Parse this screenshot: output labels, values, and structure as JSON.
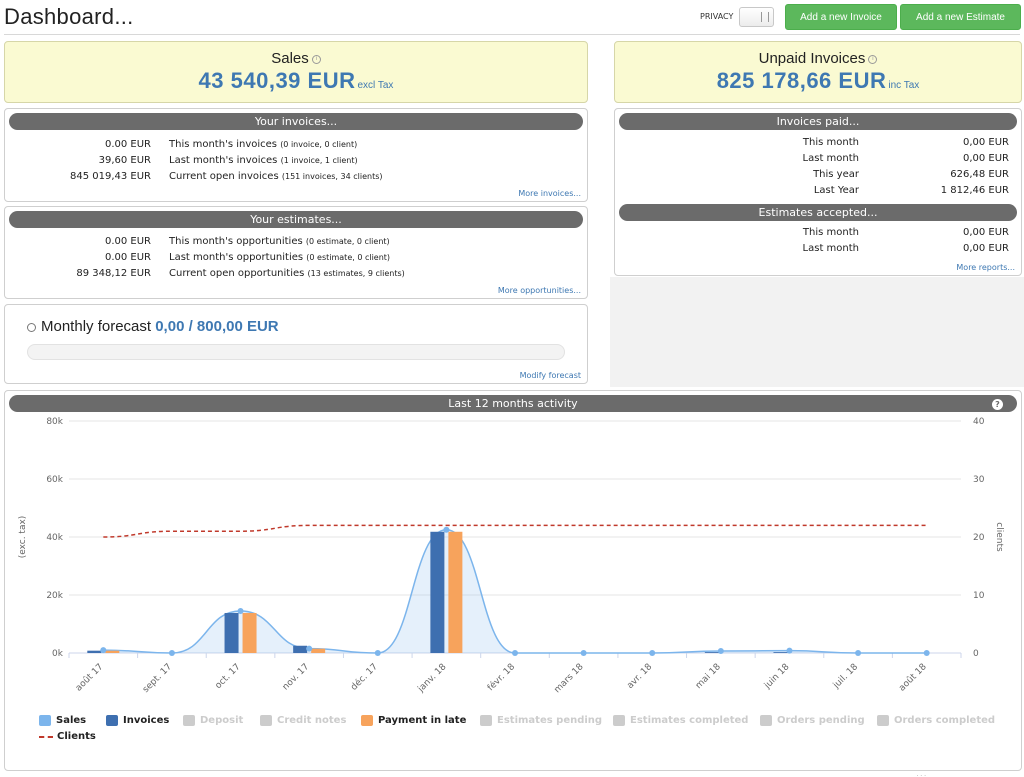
{
  "header": {
    "title": "Dashboard...",
    "privacy_label": "PRIVACY",
    "add_invoice_label": "Add a new Invoice",
    "add_estimate_label": "Add a new Estimate"
  },
  "sales": {
    "title": "Sales",
    "amount": "43 540,39 EUR",
    "suffix": "excl Tax"
  },
  "unpaid": {
    "title": "Unpaid Invoices",
    "amount": "825 178,66 EUR",
    "suffix": "inc Tax"
  },
  "invoices": {
    "header": "Your invoices...",
    "rows": [
      {
        "amount": "0.00 EUR",
        "label": "This month's invoices",
        "detail": "(0 invoice, 0 client)"
      },
      {
        "amount": "39,60 EUR",
        "label": "Last month's invoices",
        "detail": "(1 invoice, 1 client)"
      },
      {
        "amount": "845 019,43 EUR",
        "label": "Current open invoices",
        "detail": "(151 invoices, 34 clients)"
      }
    ],
    "more": "More invoices..."
  },
  "estimates": {
    "header": "Your estimates...",
    "rows": [
      {
        "amount": "0.00 EUR",
        "label": "This month's opportunities",
        "detail": "(0 estimate, 0 client)"
      },
      {
        "amount": "0.00 EUR",
        "label": "Last month's opportunities",
        "detail": "(0 estimate, 0 client)"
      },
      {
        "amount": "89 348,12 EUR",
        "label": "Current open opportunities",
        "detail": "(13 estimates, 9 clients)"
      }
    ],
    "more": "More opportunities..."
  },
  "forecast": {
    "title": "Monthly forecast",
    "value": "0,00 / 800,00 EUR",
    "progress_fraction": 0,
    "modify": "Modify forecast"
  },
  "paid": {
    "header": "Invoices paid...",
    "rows": [
      {
        "label": "This month",
        "value": "0,00 EUR"
      },
      {
        "label": "Last month",
        "value": "0,00 EUR"
      },
      {
        "label": "This year",
        "value": "626,48 EUR"
      },
      {
        "label": "Last Year",
        "value": "1 812,46 EUR"
      }
    ]
  },
  "accepted": {
    "header": "Estimates accepted...",
    "rows": [
      {
        "label": "This month",
        "value": "0,00 EUR"
      },
      {
        "label": "Last month",
        "value": "0,00 EUR"
      }
    ],
    "more": "More reports..."
  },
  "chart_data": {
    "type": "bar",
    "title": "Last 12 months activity",
    "categories": [
      "août 17",
      "sept. 17",
      "oct. 17",
      "nov. 17",
      "déc. 17",
      "janv. 18",
      "févr. 18",
      "mars 18",
      "avr. 18",
      "mai 18",
      "juin 18",
      "juil. 18",
      "août 18"
    ],
    "ylabel": "(exc. tax)",
    "y2label": "clients",
    "ylim": [
      0,
      80000
    ],
    "y2lim": [
      0,
      40
    ],
    "yticks": [
      "0k",
      "20k",
      "40k",
      "60k",
      "80k"
    ],
    "y2ticks": [
      "0",
      "10",
      "20",
      "30",
      "40"
    ],
    "series": [
      {
        "name": "Sales",
        "kind": "area",
        "color": "#7cb5ec",
        "values": [
          1000,
          0,
          14500,
          1500,
          0,
          42500,
          0,
          0,
          0,
          700,
          800,
          0,
          0
        ]
      },
      {
        "name": "Invoices",
        "kind": "bar",
        "color": "#3e6fb0",
        "values": [
          800,
          0,
          13800,
          2500,
          0,
          41800,
          0,
          0,
          0,
          300,
          300,
          0,
          0
        ]
      },
      {
        "name": "Payment in late",
        "kind": "bar",
        "color": "#f7a35c",
        "values": [
          800,
          0,
          13800,
          1500,
          0,
          41800,
          0,
          0,
          0,
          0,
          0,
          0,
          0
        ]
      },
      {
        "name": "Clients",
        "kind": "line-dashed",
        "axis": "right",
        "color": "#c0392b",
        "values": [
          20,
          21,
          21,
          22,
          22,
          22,
          22,
          22,
          22,
          22,
          22,
          22,
          22
        ]
      }
    ],
    "legend": [
      {
        "label": "Sales",
        "color": "#7cb5ec",
        "active": true
      },
      {
        "label": "Invoices",
        "color": "#3e6fb0",
        "active": true
      },
      {
        "label": "Deposit",
        "active": false
      },
      {
        "label": "Credit notes",
        "active": false
      },
      {
        "label": "Payment in late",
        "color": "#f7a35c",
        "active": true
      },
      {
        "label": "Estimates pending",
        "active": false
      },
      {
        "label": "Estimates completed",
        "active": false
      },
      {
        "label": "Orders pending",
        "active": false
      },
      {
        "label": "Orders completed",
        "active": false
      },
      {
        "label": "Clients",
        "color": "#c0392b",
        "active": true,
        "dashed": true
      }
    ],
    "legend_position": "bottom",
    "grid": true
  }
}
